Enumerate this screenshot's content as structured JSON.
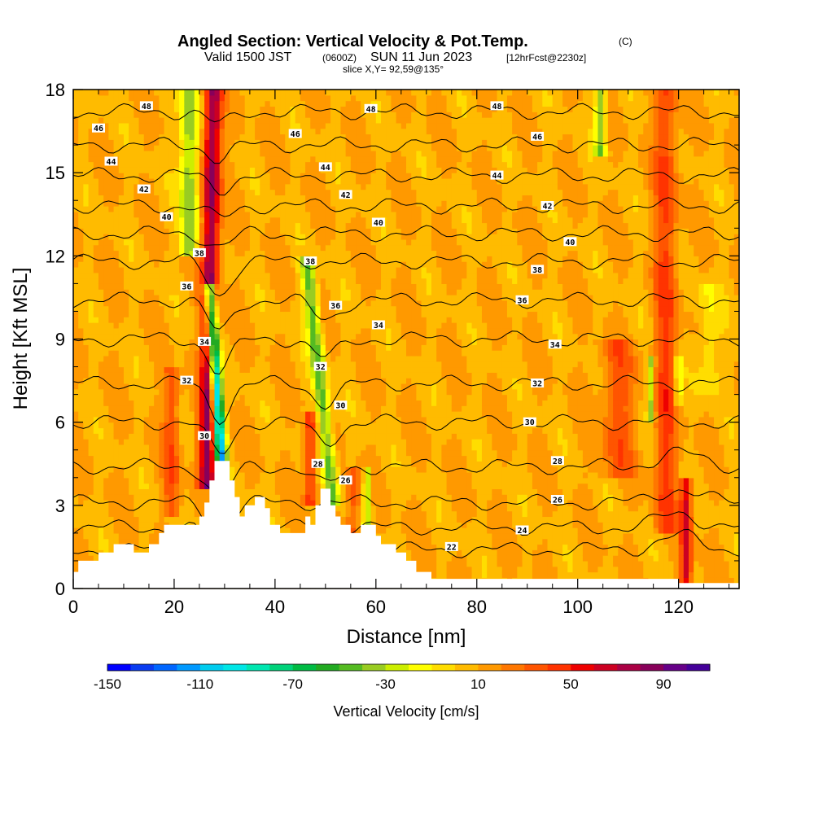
{
  "title": {
    "main": "Angled Section: Vertical Velocity & Pot.Temp.",
    "copyright": "(C)",
    "valid_prefix": "Valid 1500 JST",
    "valid_z": "(0600Z)",
    "valid_date": "SUN 11 Jun 2023",
    "forecast": "[12hrFcst@2230z]",
    "slice": "slice X,Y= 92,59@135°"
  },
  "chart_data": {
    "type": "heatmap",
    "xlabel": "Distance [nm]",
    "ylabel": "Height [Kft MSL]",
    "xlim": [
      0,
      132
    ],
    "ylim": [
      0,
      18
    ],
    "x_ticks": [
      "0",
      "20",
      "40",
      "60",
      "80",
      "100",
      "120"
    ],
    "y_ticks": [
      "0",
      "3",
      "6",
      "9",
      "12",
      "15",
      "18"
    ],
    "colorbar": {
      "label": "Vertical Velocity [cm/s]",
      "tick_labels": [
        "-150",
        "-110",
        "-70",
        "-30",
        "10",
        "50",
        "90"
      ],
      "range": [
        -150,
        110
      ],
      "step": 10,
      "colors": [
        "#0000ff",
        "#0a3cf0",
        "#0066ff",
        "#0099ff",
        "#00ccee",
        "#00e6e6",
        "#00e6b0",
        "#00d27a",
        "#00bb44",
        "#22aa22",
        "#55bb22",
        "#99cc22",
        "#ccee00",
        "#ffff00",
        "#ffdd00",
        "#ffbb00",
        "#ff9900",
        "#ff7700",
        "#ff5500",
        "#ff3300",
        "#ee0000",
        "#cc0022",
        "#aa0044",
        "#88005a",
        "#660088",
        "#440099"
      ]
    },
    "theta_contours": [
      {
        "value": 22,
        "height": 1.4
      },
      {
        "value": 24,
        "height": 2.2
      },
      {
        "value": 26,
        "height": 3.1
      },
      {
        "value": 28,
        "height": 4.4
      },
      {
        "value": 30,
        "height": 6.0
      },
      {
        "value": 32,
        "height": 7.4
      },
      {
        "value": 34,
        "height": 9.0
      },
      {
        "value": 36,
        "height": 10.4
      },
      {
        "value": 38,
        "height": 11.8
      },
      {
        "value": 40,
        "height": 12.8
      },
      {
        "value": 42,
        "height": 13.8
      },
      {
        "value": 44,
        "height": 14.9
      },
      {
        "value": 46,
        "height": 16.0
      },
      {
        "value": 48,
        "height": 17.2
      }
    ],
    "contour_labels": [
      {
        "text": "48",
        "x": 14.5,
        "y": 17.4
      },
      {
        "text": "48",
        "x": 59,
        "y": 17.3
      },
      {
        "text": "48",
        "x": 84,
        "y": 17.4
      },
      {
        "text": "46",
        "x": 5,
        "y": 16.6
      },
      {
        "text": "46",
        "x": 44,
        "y": 16.4
      },
      {
        "text": "46",
        "x": 92,
        "y": 16.3
      },
      {
        "text": "44",
        "x": 7.5,
        "y": 15.4
      },
      {
        "text": "44",
        "x": 50,
        "y": 15.2
      },
      {
        "text": "44",
        "x": 84,
        "y": 14.9
      },
      {
        "text": "42",
        "x": 14,
        "y": 14.4
      },
      {
        "text": "42",
        "x": 54,
        "y": 14.2
      },
      {
        "text": "42",
        "x": 94,
        "y": 13.8
      },
      {
        "text": "40",
        "x": 18.5,
        "y": 13.4
      },
      {
        "text": "40",
        "x": 60.5,
        "y": 13.2
      },
      {
        "text": "40",
        "x": 98.5,
        "y": 12.5
      },
      {
        "text": "38",
        "x": 25,
        "y": 12.1
      },
      {
        "text": "38",
        "x": 47,
        "y": 11.8
      },
      {
        "text": "38",
        "x": 92,
        "y": 11.5
      },
      {
        "text": "36",
        "x": 22.5,
        "y": 10.9
      },
      {
        "text": "36",
        "x": 52,
        "y": 10.2
      },
      {
        "text": "36",
        "x": 89,
        "y": 10.4
      },
      {
        "text": "34",
        "x": 26,
        "y": 8.9
      },
      {
        "text": "34",
        "x": 60.5,
        "y": 9.5
      },
      {
        "text": "34",
        "x": 95.5,
        "y": 8.8
      },
      {
        "text": "32",
        "x": 22.5,
        "y": 7.5
      },
      {
        "text": "32",
        "x": 49,
        "y": 8.0
      },
      {
        "text": "32",
        "x": 92,
        "y": 7.4
      },
      {
        "text": "30",
        "x": 26,
        "y": 5.5
      },
      {
        "text": "30",
        "x": 53,
        "y": 6.6
      },
      {
        "text": "30",
        "x": 90.5,
        "y": 6.0
      },
      {
        "text": "28",
        "x": 48.5,
        "y": 4.5
      },
      {
        "text": "28",
        "x": 96,
        "y": 4.6
      },
      {
        "text": "26",
        "x": 54,
        "y": 3.9
      },
      {
        "text": "26",
        "x": 96,
        "y": 3.2
      },
      {
        "text": "24",
        "x": 89,
        "y": 2.1
      },
      {
        "text": "22",
        "x": 75,
        "y": 1.5
      }
    ]
  }
}
